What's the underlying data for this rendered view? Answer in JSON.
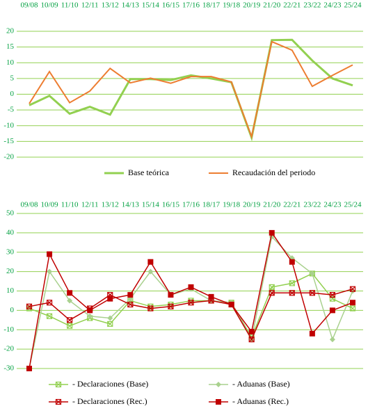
{
  "chart_data": [
    {
      "type": "line",
      "categories": [
        "09/08",
        "10/09",
        "11/10",
        "12/11",
        "13/12",
        "14/13",
        "15/14",
        "16/15",
        "17/16",
        "18/17",
        "19/18",
        "20/19",
        "21/20",
        "22/21",
        "23/22",
        "24/23",
        "25/24"
      ],
      "ylim": [
        -20,
        20
      ],
      "yticks": [
        -20,
        -15,
        -10,
        -5,
        0,
        5,
        10,
        15,
        20
      ],
      "grid": true,
      "grid_color": "#92d050",
      "label_color": "#00a040",
      "legend": "bottom",
      "series": [
        {
          "name": "Base teórica",
          "color": "#92d050",
          "width": 3,
          "values": [
            -3.5,
            -0.5,
            -6.2,
            -4,
            -6.5,
            4.8,
            4.8,
            4.5,
            6,
            5,
            3.8,
            -13.8,
            17.2,
            17.3,
            10.7,
            5,
            2.8
          ]
        },
        {
          "name": "Recaudación del periodo",
          "color": "#ed7d31",
          "width": 2,
          "values": [
            -3,
            7.2,
            -2.7,
            1,
            8.2,
            3.6,
            5.1,
            3.5,
            5.6,
            5.6,
            3.9,
            -13.5,
            16.7,
            14,
            2.5,
            6,
            9.3
          ]
        }
      ]
    },
    {
      "type": "line",
      "categories": [
        "09/08",
        "10/09",
        "11/10",
        "12/11",
        "13/12",
        "14/13",
        "15/14",
        "16/15",
        "17/16",
        "18/17",
        "19/18",
        "20/19",
        "21/20",
        "22/21",
        "23/22",
        "24/23",
        "25/24"
      ],
      "ylim": [
        -30,
        50
      ],
      "yticks": [
        -30,
        -20,
        -10,
        0,
        10,
        20,
        30,
        40,
        50
      ],
      "grid": true,
      "grid_color": "#92d050",
      "label_color": "#00a040",
      "legend": "bottom",
      "series": [
        {
          "name": "- Declaraciones (Base)",
          "color": "#92d050",
          "marker": "x-square",
          "width": 1.5,
          "values": [
            1,
            -3,
            -8,
            -4,
            -7,
            5,
            2,
            3,
            5,
            5,
            4,
            -14,
            12,
            14,
            19,
            6,
            1
          ]
        },
        {
          "name": "- Aduanas (Base)",
          "color": "#a9d18e",
          "marker": "diamond",
          "width": 1.5,
          "values": [
            -30,
            20,
            5,
            -3,
            -4,
            6,
            20,
            8,
            11,
            5,
            4,
            -15,
            38,
            27,
            19,
            -15,
            10
          ]
        },
        {
          "name": "- Declaraciones (Rec.)",
          "color": "#c00000",
          "marker": "x-square",
          "width": 1.5,
          "values": [
            2,
            4,
            -5,
            1,
            8,
            3,
            1,
            2,
            4,
            5,
            3,
            -15,
            9,
            9,
            9,
            8,
            11
          ]
        },
        {
          "name": "- Aduanas (Rec.)",
          "color": "#c00000",
          "marker": "square",
          "width": 1.5,
          "values": [
            -30,
            29,
            9,
            0,
            6,
            8,
            25,
            8,
            12,
            7,
            3,
            -11,
            40,
            25,
            -12,
            0,
            4
          ]
        }
      ]
    }
  ]
}
